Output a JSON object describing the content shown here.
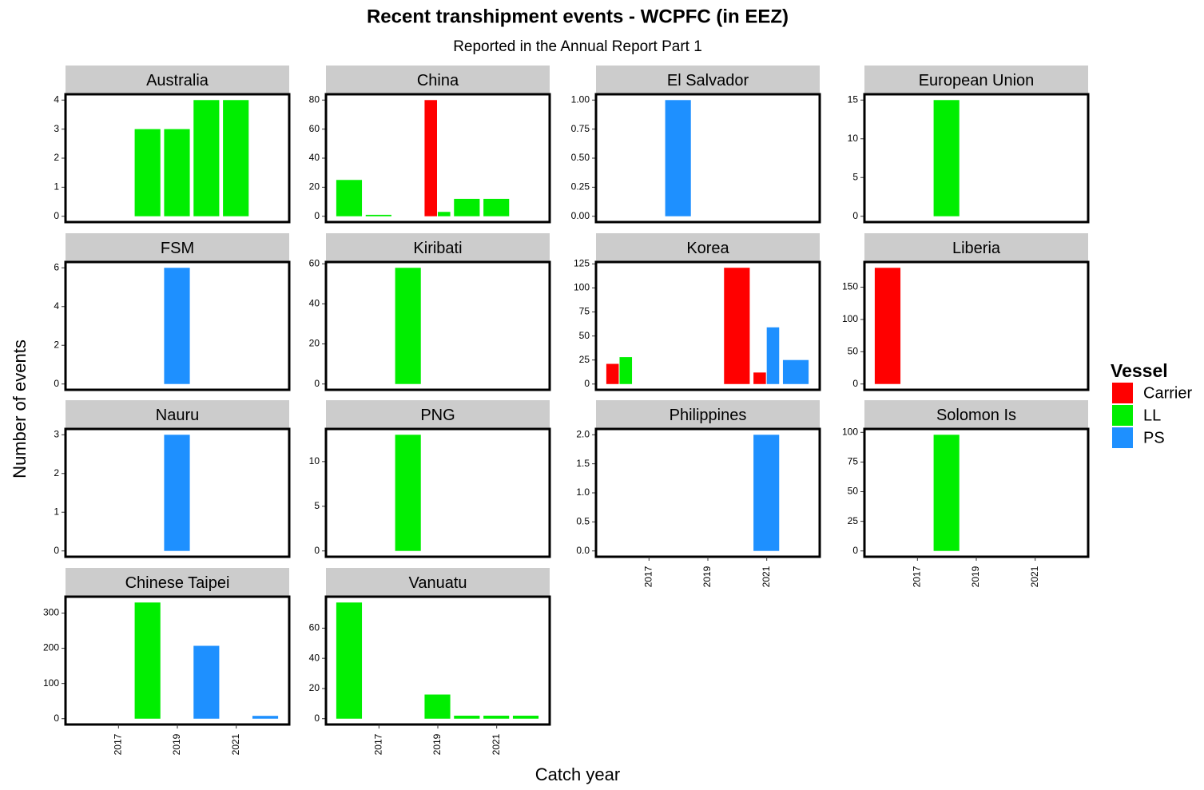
{
  "chart_data": {
    "type": "bar",
    "title": "Recent transhipment events - WCPFC (in EEZ)",
    "subtitle": "Reported in the Annual Report Part 1",
    "x_label": "Catch year",
    "y_label": "Number of events",
    "legend_title": "Vessel",
    "series": [
      {
        "name": "Carrier",
        "color": "#ff0000"
      },
      {
        "name": "LL",
        "color": "#00ee00"
      },
      {
        "name": "PS",
        "color": "#1e90ff"
      }
    ],
    "x": [
      2016,
      2017,
      2018,
      2019,
      2020,
      2021,
      2022
    ],
    "xlim": [
      2015.2,
      2022.8
    ],
    "xticks": [
      2017,
      2019,
      2021
    ],
    "panels": [
      {
        "title": "Australia",
        "ylim": [
          -0.2,
          4.2
        ],
        "yticks": [
          0,
          1,
          2,
          3,
          4
        ],
        "values": [
          [
            null,
            null,
            null,
            null,
            null,
            null,
            null
          ],
          [
            null,
            null,
            3,
            3,
            4,
            4,
            null
          ],
          [
            null,
            null,
            null,
            null,
            null,
            null,
            null
          ]
        ]
      },
      {
        "title": "China",
        "ylim": [
          -4,
          84
        ],
        "yticks": [
          0,
          20,
          40,
          60,
          80
        ],
        "values": [
          [
            null,
            null,
            null,
            80,
            null,
            null,
            null
          ],
          [
            25,
            1,
            null,
            3,
            12,
            12,
            null
          ],
          [
            null,
            null,
            null,
            null,
            null,
            null,
            null
          ]
        ]
      },
      {
        "title": "El Salvador",
        "ylim": [
          -0.05,
          1.05
        ],
        "yticks": [
          {
            "value": 0,
            "label": "0.00"
          },
          {
            "value": 0.25,
            "label": "0.25"
          },
          {
            "value": 0.5,
            "label": "0.50"
          },
          {
            "value": 0.75,
            "label": "0.75"
          },
          {
            "value": 1,
            "label": "1.00"
          }
        ],
        "values": [
          [
            null,
            null,
            null,
            null,
            null,
            null,
            null
          ],
          [
            null,
            null,
            null,
            null,
            null,
            null,
            null
          ],
          [
            null,
            null,
            1,
            null,
            null,
            null,
            null
          ]
        ]
      },
      {
        "title": "European Union",
        "ylim": [
          -0.75,
          15.75
        ],
        "yticks": [
          0,
          5,
          10,
          15
        ],
        "values": [
          [
            null,
            null,
            null,
            null,
            null,
            null,
            null
          ],
          [
            null,
            null,
            15,
            null,
            null,
            null,
            null
          ],
          [
            null,
            null,
            null,
            null,
            null,
            null,
            null
          ]
        ]
      },
      {
        "title": "FSM",
        "ylim": [
          -0.3,
          6.3
        ],
        "yticks": [
          0,
          2,
          4,
          6
        ],
        "values": [
          [
            null,
            null,
            null,
            null,
            null,
            null,
            null
          ],
          [
            null,
            null,
            null,
            null,
            null,
            null,
            null
          ],
          [
            null,
            null,
            null,
            6,
            null,
            null,
            null
          ]
        ]
      },
      {
        "title": "Kiribati",
        "ylim": [
          -2.9,
          60.9
        ],
        "yticks": [
          0,
          20,
          40,
          60
        ],
        "values": [
          [
            null,
            null,
            null,
            null,
            null,
            null,
            null
          ],
          [
            null,
            null,
            58,
            null,
            null,
            null,
            null
          ],
          [
            null,
            null,
            null,
            null,
            null,
            null,
            null
          ]
        ]
      },
      {
        "title": "Korea",
        "ylim": [
          -6,
          127
        ],
        "yticks": [
          0,
          25,
          50,
          75,
          100,
          125
        ],
        "values": [
          [
            21,
            null,
            null,
            null,
            121,
            12,
            null
          ],
          [
            28,
            null,
            null,
            null,
            null,
            null,
            null
          ],
          [
            null,
            null,
            null,
            null,
            null,
            59,
            25
          ]
        ]
      },
      {
        "title": "Liberia",
        "ylim": [
          -9,
          189
        ],
        "yticks": [
          0,
          50,
          100,
          150
        ],
        "values": [
          [
            180,
            null,
            null,
            null,
            null,
            null,
            null
          ],
          [
            null,
            null,
            null,
            null,
            null,
            null,
            null
          ],
          [
            null,
            null,
            null,
            null,
            null,
            null,
            null
          ]
        ]
      },
      {
        "title": "Nauru",
        "ylim": [
          -0.15,
          3.15
        ],
        "yticks": [
          0,
          1,
          2,
          3
        ],
        "values": [
          [
            null,
            null,
            null,
            null,
            null,
            null,
            null
          ],
          [
            null,
            null,
            null,
            null,
            null,
            null,
            null
          ],
          [
            null,
            null,
            null,
            3,
            null,
            null,
            null
          ]
        ]
      },
      {
        "title": "PNG",
        "ylim": [
          -0.65,
          13.65
        ],
        "yticks": [
          0,
          5,
          10
        ],
        "values": [
          [
            null,
            null,
            null,
            null,
            null,
            null,
            null
          ],
          [
            null,
            null,
            13,
            null,
            null,
            null,
            null
          ],
          [
            null,
            null,
            null,
            null,
            null,
            null,
            null
          ]
        ]
      },
      {
        "title": "Philippines",
        "ylim": [
          -0.1,
          2.1
        ],
        "yticks": [
          {
            "value": 0,
            "label": "0.0"
          },
          {
            "value": 0.5,
            "label": "0.5"
          },
          {
            "value": 1,
            "label": "1.0"
          },
          {
            "value": 1.5,
            "label": "1.5"
          },
          {
            "value": 2,
            "label": "2.0"
          }
        ],
        "values": [
          [
            null,
            null,
            null,
            null,
            null,
            null,
            null
          ],
          [
            null,
            null,
            null,
            null,
            null,
            null,
            null
          ],
          [
            null,
            null,
            null,
            null,
            null,
            2,
            null
          ]
        ]
      },
      {
        "title": "Solomon Is",
        "ylim": [
          -4.9,
          102.9
        ],
        "yticks": [
          0,
          25,
          50,
          75,
          100
        ],
        "values": [
          [
            null,
            null,
            null,
            null,
            null,
            null,
            null
          ],
          [
            null,
            null,
            98,
            null,
            null,
            null,
            null
          ],
          [
            null,
            null,
            null,
            null,
            null,
            null,
            null
          ]
        ]
      },
      {
        "title": "Chinese Taipei",
        "ylim": [
          -16.5,
          346.5
        ],
        "yticks": [
          0,
          100,
          200,
          300
        ],
        "values": [
          [
            null,
            null,
            null,
            null,
            null,
            null,
            null
          ],
          [
            null,
            null,
            330,
            null,
            null,
            null,
            null
          ],
          [
            null,
            null,
            null,
            null,
            207,
            null,
            8
          ]
        ]
      },
      {
        "title": "Vanuatu",
        "ylim": [
          -3.85,
          80.85
        ],
        "yticks": [
          0,
          20,
          40,
          60
        ],
        "values": [
          [
            null,
            null,
            null,
            null,
            null,
            null,
            null
          ],
          [
            77,
            null,
            null,
            16,
            2,
            2,
            2
          ],
          [
            null,
            null,
            null,
            null,
            null,
            null,
            null
          ]
        ]
      }
    ]
  }
}
